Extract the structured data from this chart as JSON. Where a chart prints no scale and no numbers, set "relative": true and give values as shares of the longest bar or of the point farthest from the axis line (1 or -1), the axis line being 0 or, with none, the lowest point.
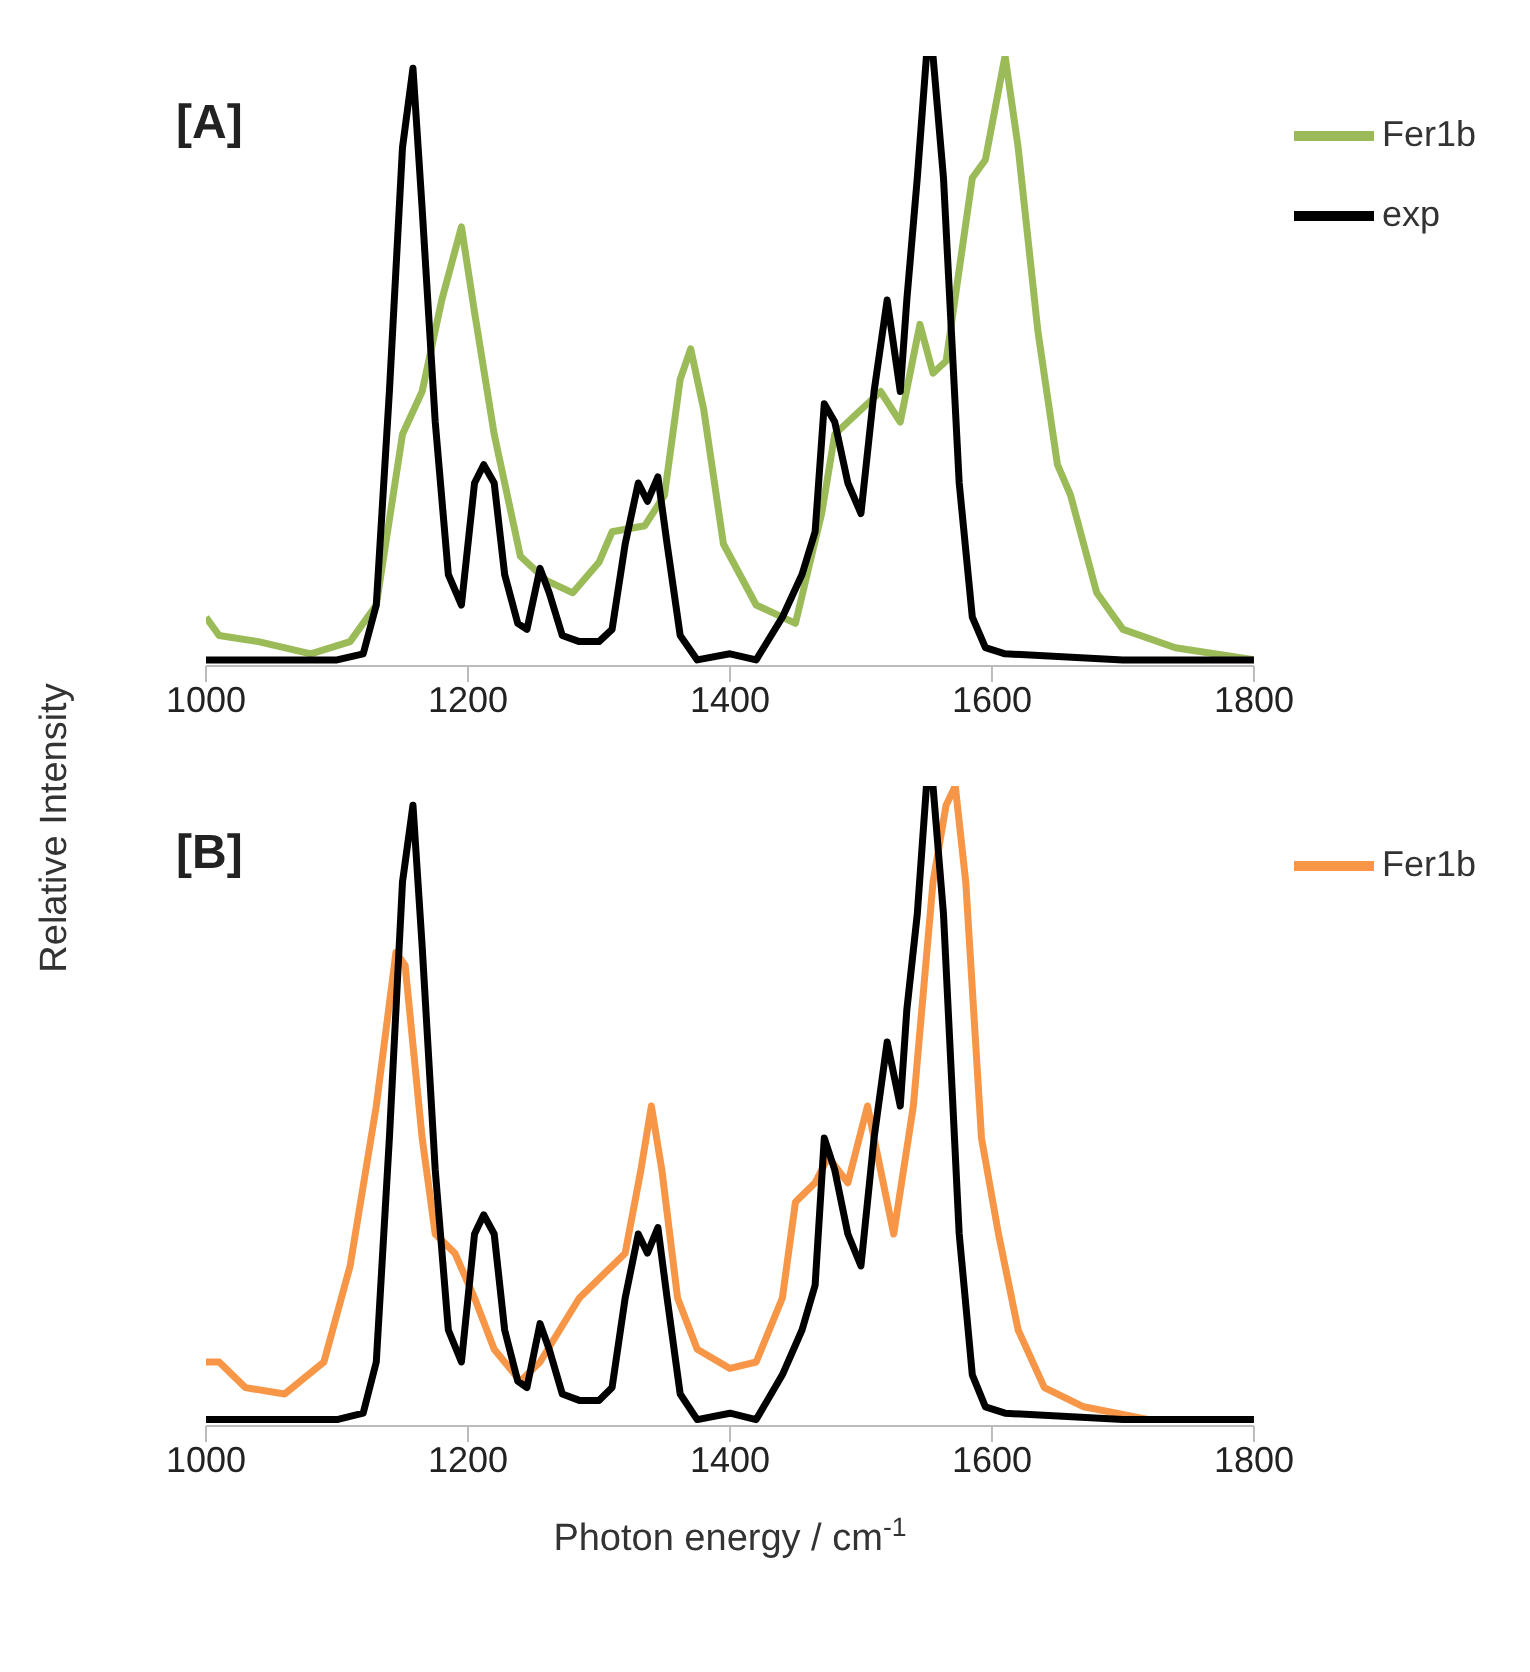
{
  "chart_data": [
    {
      "type": "line",
      "relative": true,
      "ylabel": "Relative Intensity",
      "annotations": [
        "[A]"
      ],
      "xlim": [
        1000,
        1800
      ],
      "xticks": [
        1000,
        1200,
        1400,
        1600,
        1800
      ],
      "grid": false,
      "legend": "top right",
      "marker": "none",
      "line_style": "solid",
      "series": [
        {
          "name": "Fer1b",
          "color": "#9bbb59",
          "x": [
            1000,
            1010,
            1040,
            1080,
            1110,
            1130,
            1150,
            1165,
            1180,
            1195,
            1205,
            1220,
            1240,
            1260,
            1280,
            1300,
            1310,
            1335,
            1350,
            1362,
            1370,
            1380,
            1395,
            1420,
            1450,
            1470,
            1480,
            1500,
            1515,
            1530,
            1545,
            1555,
            1565,
            1585,
            1595,
            1610,
            1620,
            1635,
            1650,
            1660,
            1680,
            1700,
            1740,
            1800
          ],
          "values": [
            0.08,
            0.05,
            0.04,
            0.02,
            0.04,
            0.1,
            0.38,
            0.45,
            0.6,
            0.72,
            0.58,
            0.38,
            0.18,
            0.14,
            0.12,
            0.17,
            0.22,
            0.23,
            0.28,
            0.47,
            0.52,
            0.42,
            0.2,
            0.1,
            0.07,
            0.25,
            0.38,
            0.42,
            0.45,
            0.4,
            0.56,
            0.48,
            0.5,
            0.8,
            0.83,
            1.0,
            0.85,
            0.55,
            0.33,
            0.28,
            0.12,
            0.06,
            0.03,
            0.01
          ]
        },
        {
          "name": "exp",
          "color": "#000000",
          "x": [
            1000,
            1050,
            1100,
            1120,
            1130,
            1140,
            1150,
            1158,
            1165,
            1175,
            1185,
            1195,
            1205,
            1212,
            1220,
            1228,
            1238,
            1245,
            1255,
            1262,
            1272,
            1285,
            1300,
            1310,
            1320,
            1330,
            1337,
            1345,
            1352,
            1362,
            1375,
            1400,
            1420,
            1440,
            1455,
            1465,
            1472,
            1480,
            1490,
            1500,
            1510,
            1520,
            1530,
            1535,
            1543,
            1550,
            1555,
            1563,
            1575,
            1585,
            1595,
            1610,
            1700,
            1800
          ],
          "values": [
            0.01,
            0.01,
            0.01,
            0.02,
            0.1,
            0.45,
            0.85,
            0.98,
            0.75,
            0.4,
            0.15,
            0.1,
            0.3,
            0.33,
            0.3,
            0.15,
            0.07,
            0.06,
            0.16,
            0.12,
            0.05,
            0.04,
            0.04,
            0.06,
            0.2,
            0.3,
            0.27,
            0.31,
            0.2,
            0.05,
            0.01,
            0.02,
            0.01,
            0.08,
            0.15,
            0.22,
            0.43,
            0.4,
            0.3,
            0.25,
            0.45,
            0.6,
            0.45,
            0.6,
            0.8,
            1.0,
            1.0,
            0.8,
            0.3,
            0.08,
            0.03,
            0.02,
            0.01,
            0.01
          ]
        }
      ]
    },
    {
      "type": "line",
      "relative": true,
      "xlabel": "Photon energy / cm$^{-1}$",
      "annotations": [
        "[B]"
      ],
      "xlim": [
        1000,
        1800
      ],
      "xticks": [
        1000,
        1200,
        1400,
        1600,
        1800
      ],
      "grid": false,
      "legend": "top right",
      "marker": "none",
      "line_style": "solid",
      "series": [
        {
          "name": "Fer1b",
          "color": "#f79646",
          "x": [
            1000,
            1010,
            1030,
            1060,
            1090,
            1110,
            1130,
            1145,
            1152,
            1165,
            1175,
            1190,
            1205,
            1220,
            1240,
            1255,
            1270,
            1285,
            1300,
            1320,
            1332,
            1340,
            1348,
            1360,
            1375,
            1400,
            1420,
            1440,
            1450,
            1465,
            1475,
            1490,
            1505,
            1515,
            1525,
            1540,
            1555,
            1565,
            1572,
            1580,
            1592,
            1605,
            1620,
            1640,
            1670,
            1720
          ],
          "values": [
            0.1,
            0.1,
            0.06,
            0.05,
            0.1,
            0.25,
            0.5,
            0.74,
            0.72,
            0.45,
            0.3,
            0.27,
            0.2,
            0.12,
            0.07,
            0.1,
            0.15,
            0.2,
            0.23,
            0.27,
            0.4,
            0.5,
            0.4,
            0.2,
            0.12,
            0.09,
            0.1,
            0.2,
            0.35,
            0.38,
            0.42,
            0.38,
            0.5,
            0.4,
            0.3,
            0.5,
            0.85,
            0.97,
            1.0,
            0.85,
            0.45,
            0.3,
            0.15,
            0.06,
            0.03,
            0.01
          ]
        },
        {
          "color": "#000000",
          "x": [
            1000,
            1050,
            1100,
            1120,
            1130,
            1140,
            1150,
            1158,
            1165,
            1175,
            1185,
            1195,
            1205,
            1212,
            1220,
            1228,
            1238,
            1245,
            1255,
            1262,
            1272,
            1285,
            1300,
            1310,
            1320,
            1330,
            1337,
            1345,
            1352,
            1362,
            1375,
            1400,
            1420,
            1440,
            1455,
            1465,
            1472,
            1480,
            1490,
            1500,
            1510,
            1520,
            1530,
            1535,
            1543,
            1550,
            1555,
            1563,
            1575,
            1585,
            1595,
            1610,
            1700,
            1800
          ],
          "values": [
            0.01,
            0.01,
            0.01,
            0.02,
            0.1,
            0.45,
            0.85,
            0.97,
            0.75,
            0.4,
            0.15,
            0.1,
            0.3,
            0.33,
            0.3,
            0.15,
            0.07,
            0.06,
            0.16,
            0.12,
            0.05,
            0.04,
            0.04,
            0.06,
            0.2,
            0.3,
            0.27,
            0.31,
            0.2,
            0.05,
            0.01,
            0.02,
            0.01,
            0.08,
            0.15,
            0.22,
            0.45,
            0.4,
            0.3,
            0.25,
            0.45,
            0.6,
            0.5,
            0.65,
            0.8,
            1.0,
            1.0,
            0.8,
            0.3,
            0.08,
            0.03,
            0.02,
            0.01,
            0.01
          ]
        }
      ]
    }
  ]
}
